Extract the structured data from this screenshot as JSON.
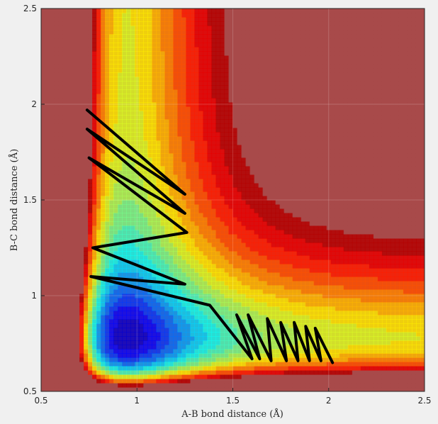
{
  "chart_data": {
    "type": "contour",
    "title": "",
    "xlabel": "A-B bond distance (Å)",
    "ylabel": "B-C bond distance (Å)",
    "xlim": [
      0.5,
      2.5
    ],
    "ylim": [
      0.5,
      2.5
    ],
    "xticks": [
      0.5,
      1,
      1.5,
      2,
      2.5
    ],
    "yticks": [
      0.5,
      1,
      1.5,
      2,
      2.5
    ],
    "xtick_labels": [
      "0.5",
      "1",
      "1.5",
      "2",
      "2.5"
    ],
    "ytick_labels": [
      "0.5",
      "1",
      "1.5",
      "2",
      "2.5"
    ],
    "grid": true,
    "colormap": "jet",
    "surface": {
      "description": "potential energy surface",
      "well_1": [
        0.95,
        2.5
      ],
      "well_2": [
        2.5,
        0.75
      ],
      "contour_levels": 18
    },
    "trajectory": {
      "color": "#000000",
      "points": [
        [
          0.74,
          1.97
        ],
        [
          1.25,
          1.53
        ],
        [
          0.74,
          1.87
        ],
        [
          1.25,
          1.43
        ],
        [
          0.75,
          1.72
        ],
        [
          1.26,
          1.33
        ],
        [
          0.77,
          1.25
        ],
        [
          1.25,
          1.06
        ],
        [
          0.76,
          1.1
        ],
        [
          1.38,
          0.95
        ],
        [
          1.6,
          0.67
        ],
        [
          1.52,
          0.9
        ],
        [
          1.64,
          0.67
        ],
        [
          1.58,
          0.9
        ],
        [
          1.7,
          0.66
        ],
        [
          1.68,
          0.88
        ],
        [
          1.78,
          0.66
        ],
        [
          1.75,
          0.86
        ],
        [
          1.84,
          0.66
        ],
        [
          1.82,
          0.86
        ],
        [
          1.9,
          0.66
        ],
        [
          1.88,
          0.84
        ],
        [
          1.96,
          0.66
        ],
        [
          1.93,
          0.83
        ],
        [
          2.02,
          0.65
        ]
      ]
    }
  }
}
